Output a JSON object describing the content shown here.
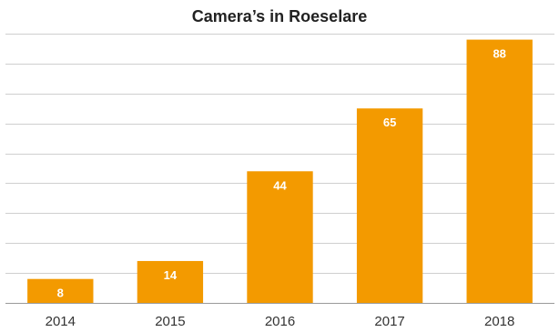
{
  "chart_data": {
    "type": "bar",
    "title": "Camera’s in Roeselare",
    "categories": [
      "2014",
      "2015",
      "2016",
      "2017",
      "2018"
    ],
    "values": [
      8,
      14,
      44,
      65,
      88
    ],
    "xlabel": "",
    "ylabel": "",
    "ylim": [
      0,
      90
    ],
    "grid": true,
    "y_tick_labels_shown": false,
    "data_labels": true,
    "legend": "none",
    "bar_color": "#F39A00",
    "label_color": "#FFFFFF"
  }
}
